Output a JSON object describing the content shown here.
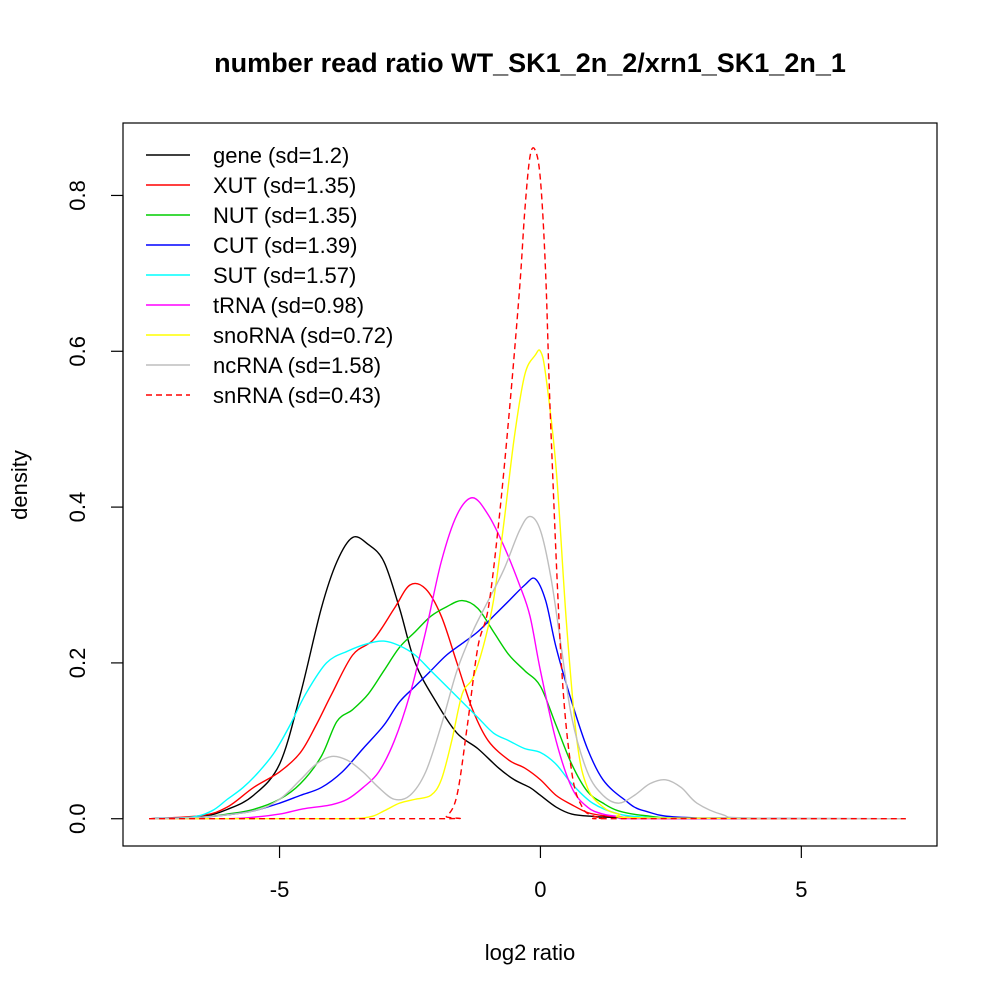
{
  "chart_data": {
    "type": "line",
    "title": "number read ratio WT_SK1_2n_2/xrn1_SK1_2n_1",
    "xlabel": "log2 ratio",
    "ylabel": "density",
    "xlim": [
      -8.0,
      7.6
    ],
    "ylim": [
      -0.035,
      0.893
    ],
    "x_ticks": [
      -5,
      0,
      5
    ],
    "y_ticks": [
      0.0,
      0.2,
      0.4,
      0.6,
      0.8
    ],
    "x_tick_labels": [
      "-5",
      "0",
      "5"
    ],
    "y_tick_labels": [
      "0.0",
      "0.2",
      "0.4",
      "0.6",
      "0.8"
    ],
    "grid": false,
    "legend_position": "top-left",
    "series": [
      {
        "name": "gene (sd=1.2)",
        "color": "#000000",
        "dashed": false,
        "x": [
          -7.5,
          -6.5,
          -6.0,
          -5.5,
          -5.0,
          -4.6,
          -4.2,
          -3.9,
          -3.6,
          -3.3,
          -3.0,
          -2.7,
          -2.4,
          -2.0,
          -1.6,
          -1.2,
          -0.8,
          -0.5,
          -0.2,
          0.0,
          0.3,
          0.6,
          1.0,
          1.5,
          2.0,
          3.0,
          5.0,
          7.0
        ],
        "y": [
          0.0,
          0.003,
          0.012,
          0.03,
          0.07,
          0.16,
          0.27,
          0.33,
          0.361,
          0.352,
          0.33,
          0.27,
          0.2,
          0.15,
          0.11,
          0.09,
          0.065,
          0.05,
          0.04,
          0.03,
          0.015,
          0.006,
          0.003,
          0.0015,
          0.001,
          0.0,
          0.0,
          0.0
        ]
      },
      {
        "name": "XUT (sd=1.35)",
        "color": "#ff0000",
        "dashed": false,
        "x": [
          -7.5,
          -6.5,
          -6.0,
          -5.5,
          -5.0,
          -4.6,
          -4.3,
          -4.0,
          -3.6,
          -3.2,
          -2.8,
          -2.5,
          -2.2,
          -1.9,
          -1.6,
          -1.3,
          -1.0,
          -0.6,
          -0.3,
          0.0,
          0.3,
          0.6,
          0.9,
          1.2,
          1.6,
          2.0,
          3.0,
          7.0
        ],
        "y": [
          0.0,
          0.004,
          0.015,
          0.04,
          0.06,
          0.085,
          0.12,
          0.16,
          0.21,
          0.23,
          0.27,
          0.3,
          0.295,
          0.26,
          0.2,
          0.14,
          0.1,
          0.075,
          0.065,
          0.05,
          0.03,
          0.018,
          0.008,
          0.004,
          0.002,
          0.001,
          0.0,
          0.0
        ]
      },
      {
        "name": "NUT (sd=1.35)",
        "color": "#00cd00",
        "dashed": false,
        "x": [
          -7.5,
          -6.5,
          -6.0,
          -5.5,
          -5.0,
          -4.6,
          -4.2,
          -3.9,
          -3.6,
          -3.3,
          -3.0,
          -2.7,
          -2.4,
          -2.1,
          -1.8,
          -1.5,
          -1.2,
          -0.9,
          -0.6,
          -0.3,
          0.0,
          0.3,
          0.6,
          0.9,
          1.2,
          1.5,
          2.0,
          3.0,
          7.0
        ],
        "y": [
          0.0,
          0.002,
          0.006,
          0.012,
          0.025,
          0.045,
          0.08,
          0.125,
          0.14,
          0.16,
          0.19,
          0.22,
          0.24,
          0.26,
          0.272,
          0.28,
          0.27,
          0.24,
          0.21,
          0.19,
          0.17,
          0.12,
          0.07,
          0.035,
          0.02,
          0.01,
          0.004,
          0.0,
          0.0
        ]
      },
      {
        "name": "CUT (sd=1.39)",
        "color": "#0000ff",
        "dashed": false,
        "x": [
          -7.5,
          -6.5,
          -6.0,
          -5.5,
          -5.0,
          -4.6,
          -4.2,
          -3.8,
          -3.4,
          -3.0,
          -2.7,
          -2.4,
          -2.1,
          -1.8,
          -1.5,
          -1.2,
          -0.9,
          -0.6,
          -0.3,
          -0.1,
          0.1,
          0.3,
          0.6,
          0.9,
          1.2,
          1.6,
          2.0,
          3.0,
          7.0
        ],
        "y": [
          0.0,
          0.002,
          0.005,
          0.01,
          0.02,
          0.03,
          0.04,
          0.06,
          0.09,
          0.12,
          0.15,
          0.17,
          0.19,
          0.21,
          0.225,
          0.24,
          0.26,
          0.28,
          0.3,
          0.308,
          0.28,
          0.22,
          0.15,
          0.09,
          0.05,
          0.025,
          0.01,
          0.001,
          0.0
        ]
      },
      {
        "name": "SUT (sd=1.57)",
        "color": "#00ffff",
        "dashed": false,
        "x": [
          -7.5,
          -6.7,
          -6.3,
          -6.0,
          -5.7,
          -5.4,
          -5.1,
          -4.8,
          -4.5,
          -4.1,
          -3.7,
          -3.3,
          -3.0,
          -2.7,
          -2.4,
          -2.1,
          -1.8,
          -1.5,
          -1.2,
          -0.9,
          -0.6,
          -0.3,
          0.0,
          0.3,
          0.6,
          1.0,
          1.5,
          2.0,
          2.5,
          3.0,
          7.0
        ],
        "y": [
          0.0,
          0.002,
          0.01,
          0.025,
          0.04,
          0.06,
          0.085,
          0.12,
          0.16,
          0.2,
          0.215,
          0.225,
          0.228,
          0.222,
          0.21,
          0.19,
          0.17,
          0.15,
          0.13,
          0.11,
          0.1,
          0.09,
          0.085,
          0.07,
          0.045,
          0.02,
          0.006,
          0.002,
          0.001,
          0.0,
          0.0
        ]
      },
      {
        "name": "tRNA (sd=0.98)",
        "color": "#ff00ff",
        "dashed": false,
        "x": [
          -7.5,
          -6.0,
          -5.5,
          -5.0,
          -4.6,
          -4.3,
          -4.0,
          -3.7,
          -3.4,
          -3.1,
          -2.8,
          -2.5,
          -2.2,
          -1.9,
          -1.6,
          -1.3,
          -1.0,
          -0.7,
          -0.4,
          -0.2,
          0.0,
          0.3,
          0.6,
          0.9,
          1.2,
          1.6,
          2.0,
          7.0
        ],
        "y": [
          0.0,
          0.0,
          0.002,
          0.006,
          0.012,
          0.015,
          0.018,
          0.025,
          0.04,
          0.06,
          0.1,
          0.16,
          0.24,
          0.33,
          0.39,
          0.412,
          0.39,
          0.35,
          0.3,
          0.26,
          0.19,
          0.1,
          0.04,
          0.015,
          0.006,
          0.002,
          0.0,
          0.0
        ]
      },
      {
        "name": "snoRNA (sd=0.72)",
        "color": "#ffff00",
        "dashed": false,
        "x": [
          -7.5,
          -4.0,
          -3.3,
          -3.0,
          -2.7,
          -2.4,
          -2.1,
          -1.9,
          -1.7,
          -1.5,
          -1.3,
          -1.1,
          -0.9,
          -0.7,
          -0.5,
          -0.3,
          -0.1,
          0.0,
          0.1,
          0.3,
          0.5,
          0.7,
          0.9,
          1.2,
          1.5,
          2.0,
          7.0
        ],
        "y": [
          0.0,
          0.0,
          0.002,
          0.01,
          0.02,
          0.025,
          0.03,
          0.05,
          0.1,
          0.16,
          0.18,
          0.22,
          0.28,
          0.38,
          0.49,
          0.57,
          0.595,
          0.6,
          0.57,
          0.45,
          0.25,
          0.1,
          0.04,
          0.015,
          0.006,
          0.001,
          0.0
        ]
      },
      {
        "name": "ncRNA (sd=1.58)",
        "color": "#bebebe",
        "dashed": false,
        "x": [
          -7.5,
          -6.5,
          -5.5,
          -5.0,
          -4.6,
          -4.3,
          -4.0,
          -3.7,
          -3.4,
          -3.1,
          -2.8,
          -2.5,
          -2.2,
          -1.9,
          -1.6,
          -1.3,
          -1.0,
          -0.7,
          -0.4,
          -0.2,
          0.0,
          0.2,
          0.4,
          0.6,
          0.9,
          1.2,
          1.5,
          1.8,
          2.1,
          2.4,
          2.7,
          3.0,
          3.5,
          4.0,
          7.0
        ],
        "y": [
          0.0,
          0.002,
          0.01,
          0.025,
          0.05,
          0.07,
          0.08,
          0.075,
          0.06,
          0.04,
          0.025,
          0.03,
          0.06,
          0.12,
          0.19,
          0.24,
          0.28,
          0.32,
          0.37,
          0.388,
          0.37,
          0.31,
          0.22,
          0.13,
          0.06,
          0.03,
          0.02,
          0.03,
          0.045,
          0.05,
          0.04,
          0.02,
          0.005,
          0.001,
          0.0
        ]
      },
      {
        "name": "snRNA (sd=0.43)",
        "color": "#ff0000",
        "dashed": true,
        "x": [
          -7.5,
          -2.0,
          -1.8,
          -1.6,
          -1.4,
          -1.2,
          -1.0,
          -0.8,
          -0.6,
          -0.4,
          -0.3,
          -0.2,
          -0.1,
          0.0,
          0.1,
          0.2,
          0.4,
          0.6,
          0.8,
          1.0,
          1.2,
          1.5,
          7.0
        ],
        "y": [
          0.0,
          0.0,
          0.003,
          0.03,
          0.12,
          0.22,
          0.27,
          0.38,
          0.52,
          0.68,
          0.78,
          0.85,
          0.858,
          0.82,
          0.7,
          0.5,
          0.2,
          0.06,
          0.015,
          0.004,
          0.001,
          0.0,
          0.0
        ]
      }
    ]
  }
}
